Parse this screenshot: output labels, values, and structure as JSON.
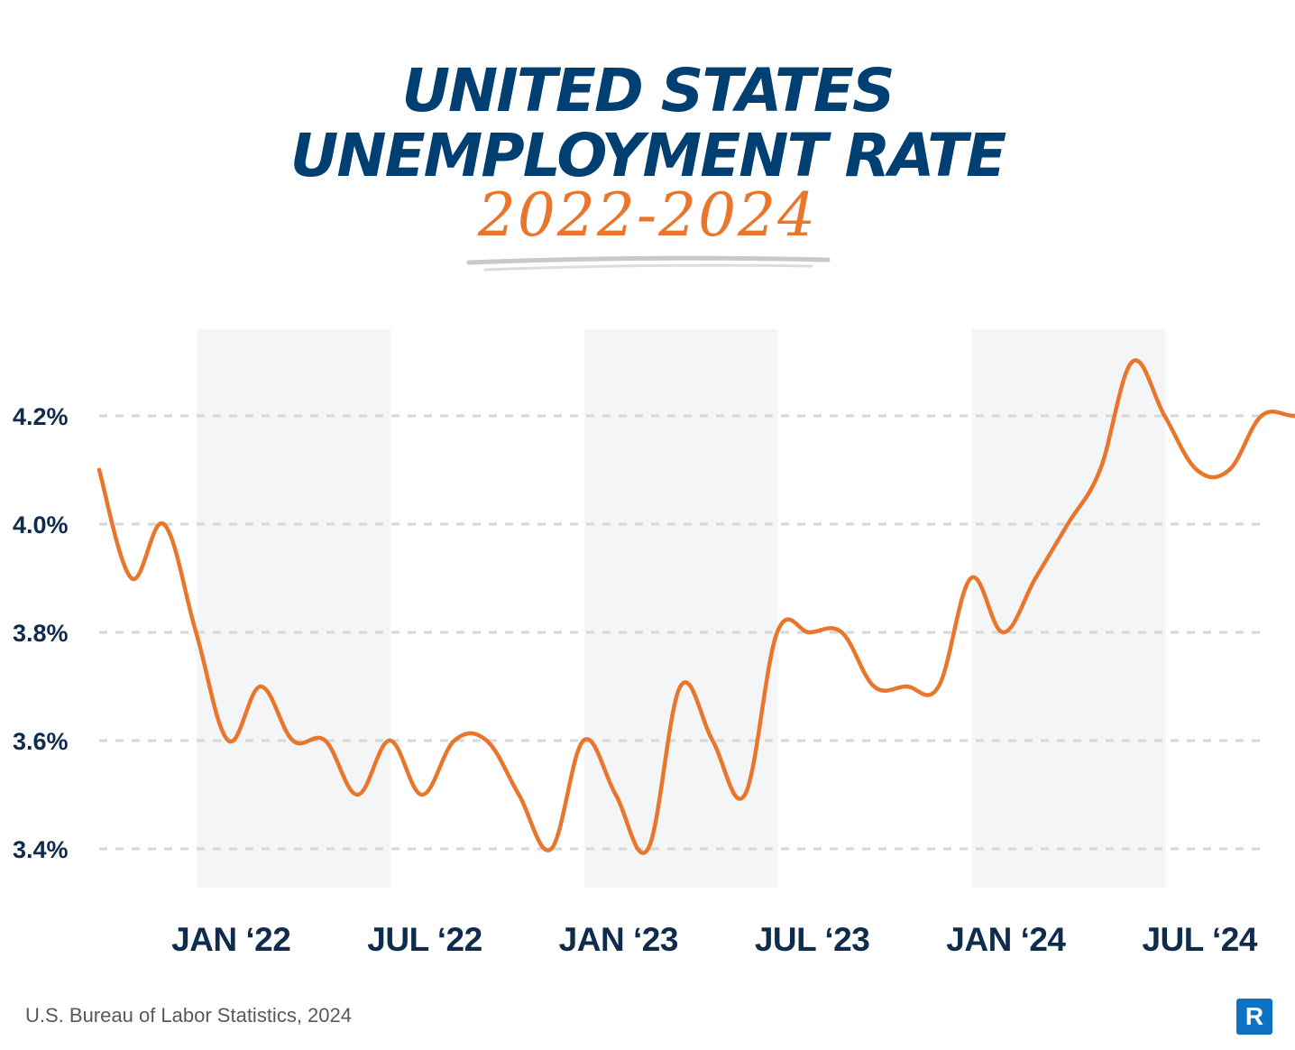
{
  "colors": {
    "title": "#003f72",
    "accent": "#e8762c",
    "band": "#f4f5f7",
    "grid": "#d5d7da",
    "tick": "#0f2c4c",
    "logo": "#0d73c2"
  },
  "title": {
    "line1": "UNITED STATES",
    "line2": "UNEMPLOYMENT RATE",
    "subtitle": "2022-2024"
  },
  "source": "U.S. Bureau of Labor Statistics, 2024",
  "logo_letter": "R",
  "chart_data": {
    "type": "line",
    "title": "UNITED STATES UNEMPLOYMENT RATE",
    "subtitle": "2022-2024",
    "xlabel": "",
    "ylabel": "",
    "y_unit": "%",
    "ylim": [
      3.3,
      4.35
    ],
    "yticks": [
      3.4,
      3.6,
      3.8,
      4.0,
      4.2
    ],
    "ytick_labels": [
      "3.4%",
      "3.6%",
      "3.8%",
      "4.0%",
      "4.2%"
    ],
    "xticks": [
      "2022-01",
      "2022-07",
      "2023-01",
      "2023-07",
      "2024-01",
      "2024-07"
    ],
    "xtick_labels": [
      "JAN ‘22",
      "JUL ‘22",
      "JAN ‘23",
      "JUL ‘23",
      "JAN ‘24",
      "JUL ‘24"
    ],
    "shaded_periods": [
      [
        "2021-12",
        "2022-06"
      ],
      [
        "2022-12",
        "2023-06"
      ],
      [
        "2023-12",
        "2024-06"
      ]
    ],
    "grid": "horizontal-dashed",
    "series": [
      {
        "x": [
          "2021-09",
          "2021-10",
          "2021-11",
          "2021-12",
          "2022-01",
          "2022-02",
          "2022-03",
          "2022-04",
          "2022-05",
          "2022-06",
          "2022-07",
          "2022-08",
          "2022-09",
          "2022-10",
          "2022-11",
          "2022-12",
          "2023-01",
          "2023-02",
          "2023-03",
          "2023-04",
          "2023-05",
          "2023-06",
          "2023-07",
          "2023-08",
          "2023-09",
          "2023-10",
          "2023-11",
          "2023-12",
          "2024-01",
          "2024-02",
          "2024-03",
          "2024-04",
          "2024-05",
          "2024-06",
          "2024-07",
          "2024-08",
          "2024-09",
          "2024-10",
          "2024-11"
        ],
        "values": [
          4.1,
          3.9,
          4.0,
          3.8,
          3.6,
          3.7,
          3.6,
          3.6,
          3.5,
          3.6,
          3.5,
          3.6,
          3.6,
          3.5,
          3.4,
          3.6,
          3.5,
          3.4,
          3.7,
          3.6,
          3.5,
          3.8,
          3.8,
          3.8,
          3.7,
          3.7,
          3.7,
          3.9,
          3.8,
          3.9,
          4.0,
          4.1,
          4.3,
          4.2,
          4.1,
          4.1,
          4.2,
          4.2,
          4.2
        ]
      }
    ]
  }
}
